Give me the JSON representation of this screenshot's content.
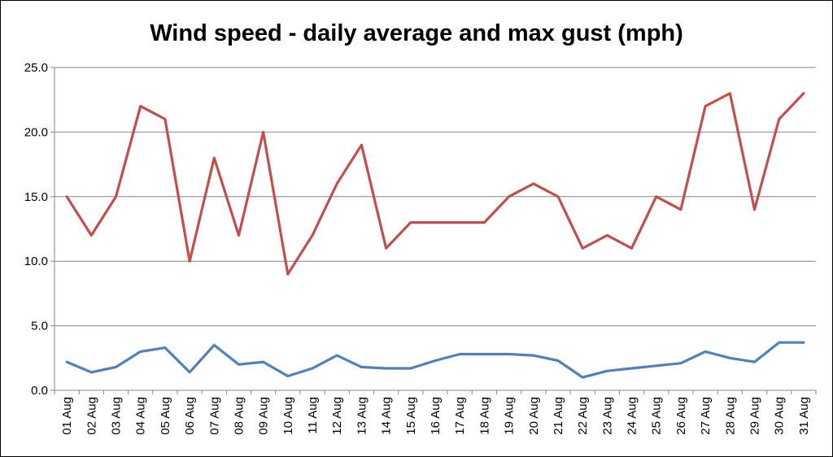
{
  "chart_data": {
    "type": "line",
    "title": "Wind speed - daily average and max gust (mph)",
    "xlabel": "",
    "ylabel": "",
    "ylim": [
      0,
      25
    ],
    "y_ticks": [
      "0.0",
      "5.0",
      "10.0",
      "15.0",
      "20.0",
      "25.0"
    ],
    "y_tick_values": [
      0,
      5,
      10,
      15,
      20,
      25
    ],
    "grid": true,
    "legend": "none",
    "categories": [
      "01 Aug",
      "02 Aug",
      "03 Aug",
      "04 Aug",
      "05 Aug",
      "06 Aug",
      "07 Aug",
      "08 Aug",
      "09 Aug",
      "10 Aug",
      "11 Aug",
      "12 Aug",
      "13 Aug",
      "14 Aug",
      "15 Aug",
      "16 Aug",
      "17 Aug",
      "18 Aug",
      "19 Aug",
      "20 Aug",
      "21 Aug",
      "22 Aug",
      "23 Aug",
      "24 Aug",
      "25 Aug",
      "26 Aug",
      "27 Aug",
      "28 Aug",
      "29 Aug",
      "30 Aug",
      "31 Aug"
    ],
    "series": [
      {
        "color": "#C0504D",
        "values": [
          15,
          12,
          15,
          22,
          21,
          10,
          18,
          12,
          20,
          9,
          12,
          16,
          19,
          11,
          13,
          13,
          13,
          13,
          15,
          16,
          15,
          11,
          12,
          11,
          15,
          14,
          22,
          23,
          14,
          21,
          23
        ]
      },
      {
        "color": "#4F81BD",
        "values": [
          2.2,
          1.4,
          1.8,
          3.0,
          3.3,
          1.4,
          3.5,
          2.0,
          2.2,
          1.1,
          1.7,
          2.7,
          1.8,
          1.7,
          1.7,
          2.3,
          2.8,
          2.8,
          2.8,
          2.7,
          2.3,
          1.0,
          1.5,
          1.7,
          1.9,
          2.1,
          3.0,
          2.5,
          2.2,
          3.7,
          3.7
        ]
      }
    ]
  }
}
